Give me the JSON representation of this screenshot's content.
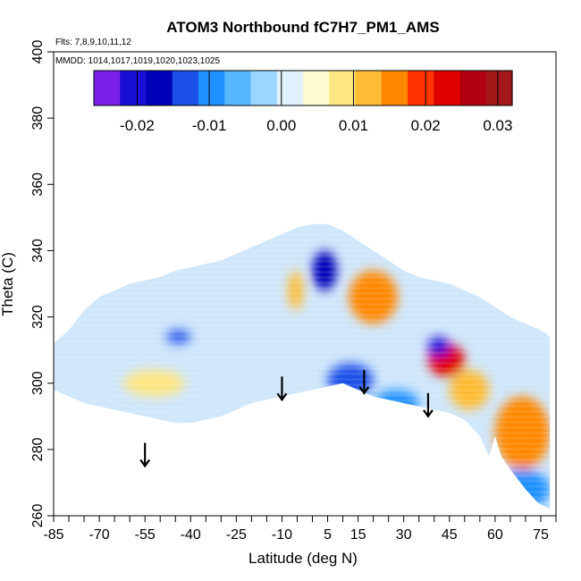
{
  "chart_data": {
    "type": "heatmap",
    "title": "ATOM3 Northbound fC7H7_PM1_AMS",
    "flights_note": "Flts: 7,8,9,10,11,12",
    "dates_note": "MMDD: 1014,1017,1019,1020,1023,1025",
    "xlabel": "Latitude (deg N)",
    "ylabel": "Theta (C)",
    "xlim": [
      -85,
      80
    ],
    "ylim": [
      260,
      400
    ],
    "x_ticks": [
      -85,
      -70,
      -55,
      -40,
      -25,
      -10,
      5,
      15,
      30,
      45,
      60,
      75
    ],
    "y_ticks": [
      260,
      280,
      300,
      320,
      340,
      360,
      380,
      400
    ],
    "colorbar": {
      "range": [
        -0.026,
        0.032
      ],
      "ticks": [
        "-0.02",
        "-0.01",
        "0.00",
        "0.01",
        "0.02",
        "0.03"
      ],
      "tick_values": [
        -0.02,
        -0.01,
        0.0,
        0.01,
        0.02,
        0.03
      ],
      "colors": [
        "#7a1fe8",
        "#1a0fd6",
        "#0000b8",
        "#1a4fe8",
        "#1e90ff",
        "#55b8ff",
        "#9ad6ff",
        "#dff0ff",
        "#fffbd0",
        "#ffe680",
        "#ffbb33",
        "#ff8800",
        "#ff3300",
        "#e00000",
        "#b00010",
        "#a01818"
      ]
    },
    "data_envelope": {
      "upper": [
        [
          -85,
          312
        ],
        [
          -80,
          316
        ],
        [
          -75,
          322
        ],
        [
          -70,
          326
        ],
        [
          -65,
          328
        ],
        [
          -60,
          330
        ],
        [
          -55,
          331
        ],
        [
          -50,
          332
        ],
        [
          -45,
          334
        ],
        [
          -40,
          335
        ],
        [
          -35,
          336
        ],
        [
          -30,
          337
        ],
        [
          -25,
          339
        ],
        [
          -20,
          341
        ],
        [
          -15,
          343
        ],
        [
          -10,
          345
        ],
        [
          -5,
          347
        ],
        [
          0,
          348
        ],
        [
          5,
          348
        ],
        [
          10,
          346
        ],
        [
          15,
          343
        ],
        [
          20,
          340
        ],
        [
          25,
          337
        ],
        [
          30,
          334
        ],
        [
          35,
          332
        ],
        [
          40,
          331
        ],
        [
          45,
          330
        ],
        [
          50,
          328
        ],
        [
          55,
          326
        ],
        [
          60,
          323
        ],
        [
          65,
          320
        ],
        [
          70,
          318
        ],
        [
          75,
          316
        ],
        [
          78,
          314
        ]
      ],
      "lower": [
        [
          -85,
          298
        ],
        [
          -80,
          296
        ],
        [
          -75,
          294
        ],
        [
          -70,
          293
        ],
        [
          -65,
          292
        ],
        [
          -60,
          291
        ],
        [
          -55,
          290
        ],
        [
          -50,
          289
        ],
        [
          -45,
          288
        ],
        [
          -40,
          288
        ],
        [
          -35,
          289
        ],
        [
          -30,
          290
        ],
        [
          -25,
          292
        ],
        [
          -20,
          294
        ],
        [
          -15,
          295
        ],
        [
          -10,
          296
        ],
        [
          -5,
          297
        ],
        [
          0,
          298
        ],
        [
          5,
          299
        ],
        [
          10,
          300
        ],
        [
          15,
          298
        ],
        [
          20,
          296
        ],
        [
          25,
          295
        ],
        [
          30,
          294
        ],
        [
          35,
          293
        ],
        [
          40,
          292
        ],
        [
          45,
          291
        ],
        [
          50,
          289
        ],
        [
          55,
          284
        ],
        [
          58,
          278
        ],
        [
          60,
          284
        ],
        [
          62,
          278
        ],
        [
          65,
          274
        ],
        [
          70,
          268
        ],
        [
          74,
          264
        ],
        [
          78,
          262
        ]
      ]
    },
    "features": [
      {
        "x": [
          -8,
          -3
        ],
        "y": [
          322,
          334
        ],
        "value": 0.012
      },
      {
        "x": [
          0,
          8
        ],
        "y": [
          328,
          340
        ],
        "value": -0.018
      },
      {
        "x": [
          12,
          28
        ],
        "y": [
          318,
          334
        ],
        "value": 0.015
      },
      {
        "x": [
          38,
          50
        ],
        "y": [
          302,
          312
        ],
        "value": 0.024
      },
      {
        "x": [
          38,
          45
        ],
        "y": [
          308,
          314
        ],
        "value": -0.022
      },
      {
        "x": [
          -62,
          -42
        ],
        "y": [
          296,
          304
        ],
        "value": 0.008
      },
      {
        "x": [
          -48,
          -40
        ],
        "y": [
          312,
          316
        ],
        "value": -0.012
      },
      {
        "x": [
          5,
          20
        ],
        "y": [
          296,
          306
        ],
        "value": -0.012
      },
      {
        "x": [
          20,
          35
        ],
        "y": [
          290,
          298
        ],
        "value": -0.008
      },
      {
        "x": [
          60,
          78
        ],
        "y": [
          274,
          296
        ],
        "value": 0.015
      },
      {
        "x": [
          60,
          78
        ],
        "y": [
          262,
          274
        ],
        "value": -0.01
      },
      {
        "x": [
          45,
          58
        ],
        "y": [
          292,
          304
        ],
        "value": 0.011
      }
    ],
    "arrows": [
      {
        "x": -55,
        "y_top": 282,
        "y_bottom": 275
      },
      {
        "x": -10,
        "y_top": 302,
        "y_bottom": 295
      },
      {
        "x": 17,
        "y_top": 304,
        "y_bottom": 297
      },
      {
        "x": 38,
        "y_top": 297,
        "y_bottom": 290
      }
    ]
  }
}
